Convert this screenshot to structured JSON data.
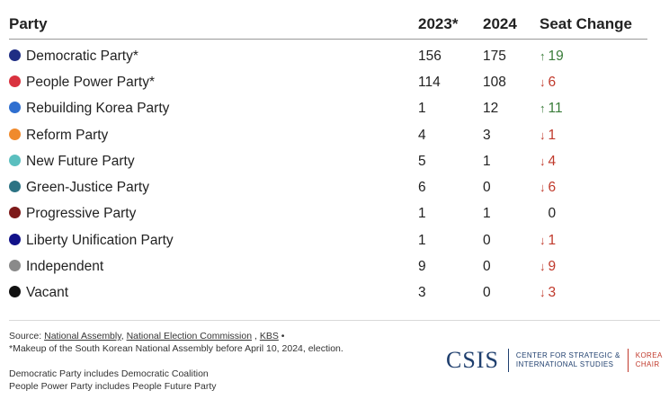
{
  "chart_data": {
    "type": "table",
    "columns": [
      "Party",
      "2023*",
      "2024",
      "Seat Change"
    ],
    "rows": [
      {
        "party": "Democratic Party*",
        "color": "#1f2e84",
        "y2023": "156",
        "y2024": "175",
        "direction": "up",
        "change": "19"
      },
      {
        "party": "People Power Party*",
        "color": "#d9323f",
        "y2023": "114",
        "y2024": "108",
        "direction": "down",
        "change": "6"
      },
      {
        "party": "Rebuilding Korea Party",
        "color": "#2f6fd0",
        "y2023": "1",
        "y2024": "12",
        "direction": "up",
        "change": "11"
      },
      {
        "party": "Reform Party",
        "color": "#f08a2c",
        "y2023": "4",
        "y2024": "3",
        "direction": "down",
        "change": "1"
      },
      {
        "party": "New Future Party",
        "color": "#5bbfbf",
        "y2023": "5",
        "y2024": "1",
        "direction": "down",
        "change": "4"
      },
      {
        "party": "Green-Justice Party",
        "color": "#2c7384",
        "y2023": "6",
        "y2024": "0",
        "direction": "down",
        "change": "6"
      },
      {
        "party": "Progressive Party",
        "color": "#7d1a1a",
        "y2023": "1",
        "y2024": "1",
        "direction": "none",
        "change": "0"
      },
      {
        "party": "Liberty Unification Party",
        "color": "#12128a",
        "y2023": "1",
        "y2024": "0",
        "direction": "down",
        "change": "1"
      },
      {
        "party": "Independent",
        "color": "#8a8a8a",
        "y2023": "9",
        "y2024": "0",
        "direction": "down",
        "change": "9"
      },
      {
        "party": "Vacant",
        "color": "#111111",
        "y2023": "3",
        "y2024": "0",
        "direction": "down",
        "change": "3"
      }
    ]
  },
  "colors": {
    "up": "#3a7d3a",
    "down": "#c0392b"
  },
  "icons": {
    "up": "up-arrow-icon",
    "down": "down-arrow-icon"
  },
  "footer": {
    "source_label": "Source:",
    "sources": [
      "National Assembly",
      "National Election Commission",
      "KBS"
    ],
    "makeup_note": "*Makeup of the South Korean National Assembly before April 10, 2024, election.",
    "note_democratic": "Democratic Party includes Democratic Coalition",
    "note_ppp": "People Power Party includes People Future Party"
  },
  "logo": {
    "name": "CSIS",
    "center_line1": "CENTER FOR STRATEGIC &",
    "center_line2": "INTERNATIONAL STUDIES",
    "chair_line1": "KOREA",
    "chair_line2": "CHAIR"
  }
}
